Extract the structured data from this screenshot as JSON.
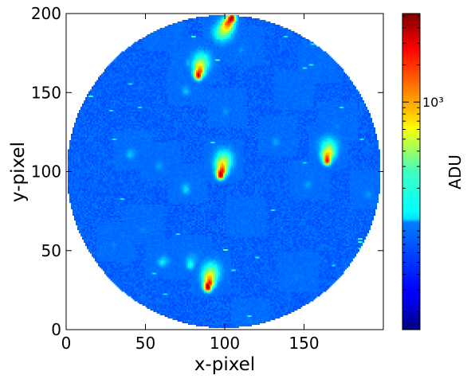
{
  "chart_data": {
    "type": "heatmap",
    "title": "",
    "xlabel": "x-pixel",
    "ylabel": "y-pixel",
    "xlim": [
      0,
      200
    ],
    "ylim": [
      0,
      200
    ],
    "x_ticks": [
      0,
      50,
      100,
      150
    ],
    "y_ticks": [
      0,
      50,
      100,
      150,
      200
    ],
    "grid": false,
    "mask": {
      "shape": "circle",
      "center": [
        99.5,
        100
      ],
      "radius": 99
    },
    "background_level": 0.22,
    "colorbar": {
      "label": "ADU",
      "scale": "log",
      "colormap": "jet",
      "major_tick_value": "10³",
      "major_tick_fraction": 0.72,
      "placement": "right"
    },
    "spots": [
      {
        "x": 104,
        "y": 197,
        "peak": 1.0,
        "tail_dx": -6,
        "tail_dy": -10
      },
      {
        "x": 83,
        "y": 160,
        "peak": 0.95,
        "tail_dx": 2,
        "tail_dy": 10
      },
      {
        "x": 97,
        "y": 97,
        "peak": 1.0,
        "tail_dx": 2,
        "tail_dy": 11
      },
      {
        "x": 164,
        "y": 106,
        "peak": 0.9,
        "tail_dx": 1,
        "tail_dy": 10
      },
      {
        "x": 89,
        "y": 26,
        "peak": 1.0,
        "tail_dx": 2,
        "tail_dy": 11
      },
      {
        "x": 78,
        "y": 40,
        "peak": 0.4,
        "tail_dx": 1,
        "tail_dy": 7
      },
      {
        "x": 75,
        "y": 88,
        "peak": 0.35,
        "tail_dx": 1,
        "tail_dy": 4
      },
      {
        "x": 75,
        "y": 150,
        "peak": 0.32,
        "tail_dx": 1,
        "tail_dy": 4
      },
      {
        "x": 77,
        "y": 168,
        "peak": 0.3,
        "tail_dx": 1,
        "tail_dy": 4
      },
      {
        "x": 152,
        "y": 91,
        "peak": 0.28,
        "tail_dx": 1,
        "tail_dy": 3
      },
      {
        "x": 40,
        "y": 110,
        "peak": 0.32,
        "tail_dx": 2,
        "tail_dy": 3
      },
      {
        "x": 58,
        "y": 103,
        "peak": 0.28,
        "tail_dx": 1,
        "tail_dy": 3
      },
      {
        "x": 60,
        "y": 42,
        "peak": 0.38,
        "tail_dx": 2,
        "tail_dy": 2
      },
      {
        "x": 132,
        "y": 118,
        "peak": 0.28,
        "tail_dx": 1,
        "tail_dy": 4
      },
      {
        "x": 100,
        "y": 137,
        "peak": 0.26,
        "tail_dx": 1,
        "tail_dy": 3
      },
      {
        "x": 110,
        "y": 176,
        "peak": 0.26,
        "tail_dx": 1,
        "tail_dy": 3
      },
      {
        "x": 190,
        "y": 85,
        "peak": 0.27,
        "tail_dx": 1,
        "tail_dy": 3
      },
      {
        "x": 170,
        "y": 128,
        "peak": 0.25,
        "tail_dx": 1,
        "tail_dy": 3
      },
      {
        "x": 48,
        "y": 63,
        "peak": 0.25,
        "tail_dx": 1,
        "tail_dy": 3
      },
      {
        "x": 112,
        "y": 68,
        "peak": 0.24,
        "tail_dx": 1,
        "tail_dy": 3
      },
      {
        "x": 145,
        "y": 33,
        "peak": 0.24,
        "tail_dx": 1,
        "tail_dy": 3
      },
      {
        "x": 115,
        "y": 5,
        "peak": 0.24,
        "tail_dx": 1,
        "tail_dy": 2
      },
      {
        "x": 60,
        "y": 185,
        "peak": 0.22,
        "tail_dx": 1,
        "tail_dy": 3
      },
      {
        "x": 157,
        "y": 165,
        "peak": 0.23,
        "tail_dx": 1,
        "tail_dy": 3
      },
      {
        "x": 30,
        "y": 53,
        "peak": 0.24,
        "tail_dx": 1,
        "tail_dy": 2
      },
      {
        "x": 142,
        "y": 148,
        "peak": 0.23,
        "tail_dx": 1,
        "tail_dy": 3
      }
    ],
    "hot_pixels": [
      {
        "x": 95,
        "y": 170,
        "v": 0.5
      },
      {
        "x": 80,
        "y": 185,
        "v": 0.45
      },
      {
        "x": 96,
        "y": 192,
        "v": 0.42
      },
      {
        "x": 160,
        "y": 190,
        "v": 0.4
      },
      {
        "x": 155,
        "y": 180,
        "v": 0.42
      },
      {
        "x": 150,
        "y": 165,
        "v": 0.42
      },
      {
        "x": 154,
        "y": 167,
        "v": 0.42
      },
      {
        "x": 15,
        "y": 147,
        "v": 0.45
      },
      {
        "x": 28,
        "y": 138,
        "v": 0.4
      },
      {
        "x": 150,
        "y": 105,
        "v": 0.38
      },
      {
        "x": 185,
        "y": 55,
        "v": 0.45
      },
      {
        "x": 185,
        "y": 57,
        "v": 0.45
      },
      {
        "x": 185,
        "y": 51,
        "v": 0.42
      },
      {
        "x": 100,
        "y": 50,
        "v": 0.5
      },
      {
        "x": 105,
        "y": 37,
        "v": 0.42
      },
      {
        "x": 62,
        "y": 22,
        "v": 0.4
      },
      {
        "x": 115,
        "y": 8,
        "v": 0.42
      },
      {
        "x": 55,
        "y": 35,
        "v": 0.4
      },
      {
        "x": 30,
        "y": 120,
        "v": 0.4
      },
      {
        "x": 40,
        "y": 155,
        "v": 0.4
      },
      {
        "x": 186,
        "y": 120,
        "v": 0.4
      },
      {
        "x": 35,
        "y": 82,
        "v": 0.4
      },
      {
        "x": 120,
        "y": 45,
        "v": 0.4
      },
      {
        "x": 70,
        "y": 60,
        "v": 0.4
      },
      {
        "x": 138,
        "y": 185,
        "v": 0.4
      },
      {
        "x": 130,
        "y": 75,
        "v": 0.4
      },
      {
        "x": 92,
        "y": 118,
        "v": 0.42
      },
      {
        "x": 46,
        "y": 140,
        "v": 0.4
      },
      {
        "x": 173,
        "y": 140,
        "v": 0.4
      },
      {
        "x": 168,
        "y": 40,
        "v": 0.38
      }
    ]
  }
}
